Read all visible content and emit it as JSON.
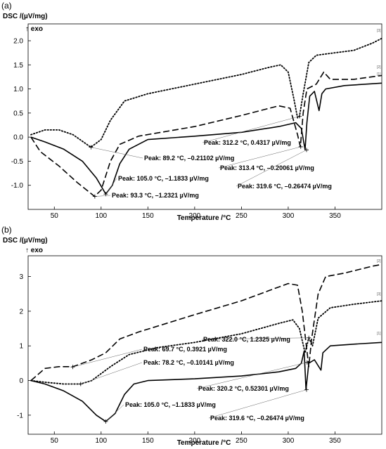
{
  "chart_data": [
    {
      "type": "line",
      "panel_label": "(a)",
      "ylabel": "DSC /(µV/mg)",
      "xlabel": "Temperature /°C",
      "exo_label": "↑ exo",
      "xlim": [
        22,
        400
      ],
      "ylim": [
        -1.5,
        2.35
      ],
      "xticks": [
        50,
        100,
        150,
        200,
        250,
        300,
        350
      ],
      "yticks": [
        -1.0,
        -0.5,
        0.0,
        0.5,
        1.0,
        1.5,
        2.0
      ],
      "ytick_labels": [
        "-1.0",
        "-0.5",
        "0.0",
        "0.5",
        "1.0",
        "1.5",
        "2.0"
      ],
      "series": [
        {
          "name": "[1]",
          "style": "solid",
          "points": [
            [
              25,
              0.0
            ],
            [
              40,
              -0.1
            ],
            [
              60,
              -0.25
            ],
            [
              80,
              -0.5
            ],
            [
              95,
              -0.85
            ],
            [
              105,
              -1.18
            ],
            [
              112,
              -1.0
            ],
            [
              120,
              -0.55
            ],
            [
              130,
              -0.25
            ],
            [
              150,
              -0.05
            ],
            [
              200,
              0.02
            ],
            [
              250,
              0.1
            ],
            [
              290,
              0.22
            ],
            [
              308,
              0.3
            ],
            [
              314,
              0.18
            ],
            [
              318,
              -0.26
            ],
            [
              320,
              0.3
            ],
            [
              323,
              0.85
            ],
            [
              328,
              0.95
            ],
            [
              333,
              0.55
            ],
            [
              336,
              0.9
            ],
            [
              340,
              1.0
            ],
            [
              360,
              1.07
            ],
            [
              400,
              1.12
            ]
          ]
        },
        {
          "name": "[2]",
          "style": "dashed",
          "points": [
            [
              25,
              0.0
            ],
            [
              35,
              -0.3
            ],
            [
              55,
              -0.6
            ],
            [
              75,
              -0.95
            ],
            [
              93,
              -1.23
            ],
            [
              100,
              -1.1
            ],
            [
              110,
              -0.5
            ],
            [
              120,
              -0.15
            ],
            [
              140,
              0.02
            ],
            [
              200,
              0.22
            ],
            [
              250,
              0.45
            ],
            [
              290,
              0.65
            ],
            [
              302,
              0.6
            ],
            [
              310,
              0.05
            ],
            [
              313,
              -0.2
            ],
            [
              316,
              0.5
            ],
            [
              320,
              1.0
            ],
            [
              330,
              1.1
            ],
            [
              338,
              1.35
            ],
            [
              345,
              1.2
            ],
            [
              370,
              1.2
            ],
            [
              400,
              1.28
            ]
          ]
        },
        {
          "name": "[3]",
          "style": "dotted",
          "points": [
            [
              25,
              0.05
            ],
            [
              40,
              0.15
            ],
            [
              55,
              0.15
            ],
            [
              70,
              0.05
            ],
            [
              89,
              -0.21
            ],
            [
              100,
              -0.05
            ],
            [
              110,
              0.35
            ],
            [
              125,
              0.75
            ],
            [
              150,
              0.9
            ],
            [
              200,
              1.1
            ],
            [
              250,
              1.3
            ],
            [
              280,
              1.45
            ],
            [
              292,
              1.5
            ],
            [
              300,
              1.35
            ],
            [
              306,
              0.8
            ],
            [
              310,
              0.4
            ],
            [
              312,
              0.43
            ],
            [
              316,
              0.9
            ],
            [
              322,
              1.55
            ],
            [
              330,
              1.7
            ],
            [
              350,
              1.75
            ],
            [
              370,
              1.8
            ],
            [
              390,
              1.95
            ],
            [
              400,
              2.05
            ]
          ]
        }
      ],
      "series_labels": [
        "[3]",
        "[2]",
        "[1]"
      ],
      "annotations": [
        {
          "text": "Peak: 89.2 °C, –0.21102 µV/mg",
          "x": 89.2,
          "y": -0.211
        },
        {
          "text": "Peak: 312.2 °C, 0.4317 µV/mg",
          "x": 312.2,
          "y": 0.432
        },
        {
          "text": "Peak: 313.4 °C, –0.20061 µV/mg",
          "x": 313.4,
          "y": -0.201
        },
        {
          "text": "Peak: 105.0 °C, –1.1833 µV/mg",
          "x": 105.0,
          "y": -1.183
        },
        {
          "text": "Peak: 319.6 °C, –0.26474 µV/mg",
          "x": 319.6,
          "y": -0.265
        },
        {
          "text": "Peak: 93.3 °C, –1.2321 µV/mg",
          "x": 93.3,
          "y": -1.232
        }
      ]
    },
    {
      "type": "line",
      "panel_label": "(b)",
      "ylabel": "DSC /(µV/mg)",
      "xlabel": "Temperature /°C",
      "exo_label": "↑ exo",
      "xlim": [
        22,
        400
      ],
      "ylim": [
        -1.55,
        3.6
      ],
      "xticks": [
        50,
        100,
        150,
        200,
        250,
        300,
        350
      ],
      "yticks": [
        -1,
        0,
        1,
        2,
        3
      ],
      "ytick_labels": [
        "-1",
        "0",
        "1",
        "2",
        "3"
      ],
      "series": [
        {
          "name": "[1]",
          "style": "solid",
          "points": [
            [
              25,
              0.0
            ],
            [
              40,
              -0.1
            ],
            [
              60,
              -0.3
            ],
            [
              80,
              -0.6
            ],
            [
              95,
              -1.0
            ],
            [
              105,
              -1.18
            ],
            [
              115,
              -0.95
            ],
            [
              125,
              -0.4
            ],
            [
              135,
              -0.1
            ],
            [
              150,
              0.0
            ],
            [
              200,
              0.05
            ],
            [
              250,
              0.13
            ],
            [
              290,
              0.25
            ],
            [
              308,
              0.35
            ],
            [
              314,
              0.5
            ],
            [
              317,
              0.85
            ],
            [
              319,
              -0.26
            ],
            [
              322,
              0.5
            ],
            [
              328,
              0.6
            ],
            [
              335,
              0.3
            ],
            [
              337,
              0.8
            ],
            [
              345,
              1.0
            ],
            [
              370,
              1.05
            ],
            [
              400,
              1.1
            ]
          ]
        },
        {
          "name": "[2]",
          "style": "dashed",
          "points": [
            [
              25,
              0.0
            ],
            [
              40,
              0.35
            ],
            [
              55,
              0.4
            ],
            [
              70,
              0.4
            ],
            [
              90,
              0.6
            ],
            [
              105,
              0.8
            ],
            [
              120,
              1.2
            ],
            [
              140,
              1.4
            ],
            [
              170,
              1.65
            ],
            [
              200,
              1.9
            ],
            [
              250,
              2.3
            ],
            [
              280,
              2.6
            ],
            [
              300,
              2.8
            ],
            [
              310,
              2.75
            ],
            [
              315,
              2.0
            ],
            [
              322,
              0.4
            ],
            [
              325,
              1.2
            ],
            [
              332,
              2.5
            ],
            [
              340,
              3.0
            ],
            [
              360,
              3.1
            ],
            [
              390,
              3.3
            ],
            [
              400,
              3.35
            ]
          ]
        },
        {
          "name": "[3]",
          "style": "dotted",
          "points": [
            [
              25,
              0.0
            ],
            [
              40,
              -0.05
            ],
            [
              60,
              -0.1
            ],
            [
              78,
              -0.1
            ],
            [
              90,
              0.0
            ],
            [
              110,
              0.4
            ],
            [
              130,
              0.75
            ],
            [
              160,
              0.95
            ],
            [
              200,
              1.1
            ],
            [
              250,
              1.35
            ],
            [
              290,
              1.65
            ],
            [
              305,
              1.75
            ],
            [
              312,
              1.5
            ],
            [
              318,
              0.8
            ],
            [
              322,
              1.23
            ],
            [
              326,
              1.0
            ],
            [
              332,
              1.8
            ],
            [
              345,
              2.1
            ],
            [
              370,
              2.2
            ],
            [
              400,
              2.3
            ]
          ]
        }
      ],
      "series_labels": [
        "[2]",
        "[3]",
        "[1]"
      ],
      "annotations": [
        {
          "text": "Peak: 322.0 °C, 1.2325 µV/mg",
          "x": 322.0,
          "y": 1.233
        },
        {
          "text": "Peak: 69.7 °C, 0.3921 µV/mg",
          "x": 69.7,
          "y": 0.392
        },
        {
          "text": "Peak: 78.2 °C, –0.10141 µV/mg",
          "x": 78.2,
          "y": -0.101
        },
        {
          "text": "Peak: 320.2 °C, 0.52301 µV/mg",
          "x": 320.2,
          "y": 0.523
        },
        {
          "text": "Peak: 105.0 °C, –1.1833 µV/mg",
          "x": 105.0,
          "y": -1.183
        },
        {
          "text": "Peak: 319.6 °C, –0.26474 µV/mg",
          "x": 319.6,
          "y": -0.265
        }
      ]
    }
  ]
}
